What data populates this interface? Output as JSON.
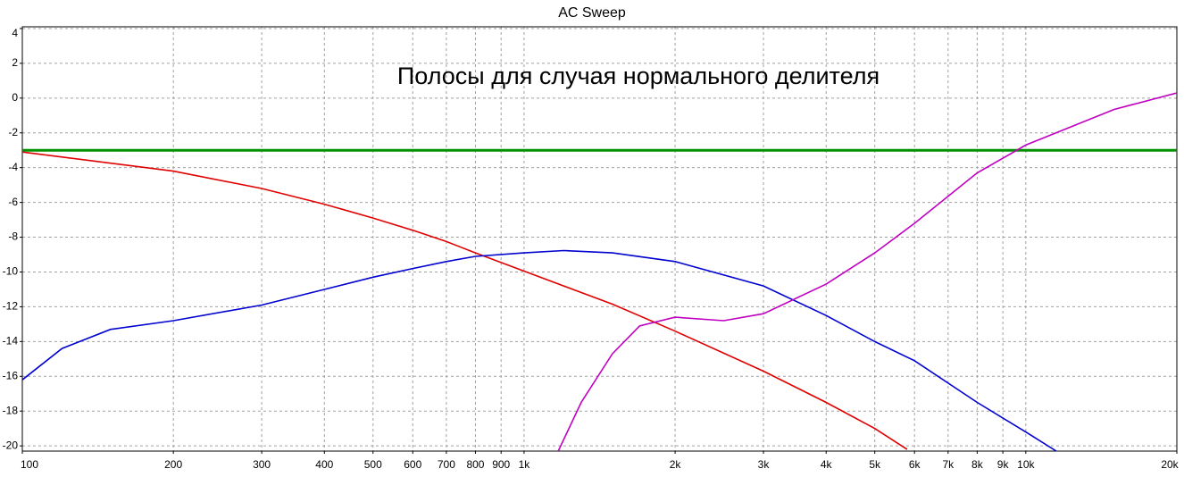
{
  "chart_data": {
    "type": "line",
    "title": "AC Sweep",
    "annotation": "Полосы для случая нормального делителя",
    "xscale": "log",
    "grid": true,
    "xlim": [
      100,
      20000
    ],
    "ylim": [
      -20.3,
      4.1
    ],
    "xticks": [
      100,
      200,
      300,
      400,
      500,
      600,
      700,
      800,
      900,
      {
        "value": 1000,
        "label": "1k"
      },
      {
        "value": 2000,
        "label": "2k"
      },
      {
        "value": 3000,
        "label": "3k"
      },
      {
        "value": 4000,
        "label": "4k"
      },
      {
        "value": 5000,
        "label": "5k"
      },
      {
        "value": 6000,
        "label": "6k"
      },
      {
        "value": 7000,
        "label": "7k"
      },
      {
        "value": 8000,
        "label": "8k"
      },
      {
        "value": 9000,
        "label": "9k"
      },
      {
        "value": 10000,
        "label": "10k"
      },
      {
        "value": 20000,
        "label": "20k"
      }
    ],
    "yticks": [
      4,
      2,
      0,
      -2,
      -4,
      -6,
      -8,
      -10,
      -12,
      -14,
      -16,
      -18,
      -20
    ],
    "series": [
      {
        "color": "#009000",
        "x": [
          100,
          20000
        ],
        "values": [
          -3,
          -3
        ]
      },
      {
        "color": "#e00000",
        "x": [
          100,
          200,
          300,
          400,
          500,
          600,
          700,
          800,
          1000,
          1500,
          2000,
          3000,
          4000,
          5000,
          5800
        ],
        "values": [
          -3.1,
          -4.2,
          -5.2,
          -6.1,
          -6.9,
          -7.6,
          -8.25,
          -8.9,
          -9.95,
          -11.85,
          -13.4,
          -15.7,
          -17.5,
          -19.0,
          -20.2
        ]
      },
      {
        "color": "#0000d0",
        "x": [
          100,
          120,
          150,
          200,
          300,
          400,
          500,
          600,
          700,
          800,
          1000,
          1200,
          1500,
          2000,
          3000,
          4000,
          5000,
          6000,
          8000,
          10000,
          11500
        ],
        "values": [
          -16.2,
          -14.4,
          -13.3,
          -12.8,
          -11.9,
          -11.0,
          -10.3,
          -9.8,
          -9.4,
          -9.1,
          -8.9,
          -8.77,
          -8.9,
          -9.4,
          -10.8,
          -12.5,
          -14.0,
          -15.1,
          -17.5,
          -19.2,
          -20.3
        ]
      },
      {
        "color": "#c000c0",
        "x": [
          1170,
          1300,
          1500,
          1700,
          2000,
          2500,
          3000,
          4000,
          5000,
          6000,
          8000,
          10000,
          15000,
          20000
        ],
        "values": [
          -20.3,
          -17.5,
          -14.7,
          -13.1,
          -12.6,
          -12.8,
          -12.4,
          -10.7,
          -8.9,
          -7.2,
          -4.3,
          -2.7,
          -0.65,
          0.3
        ]
      }
    ]
  }
}
